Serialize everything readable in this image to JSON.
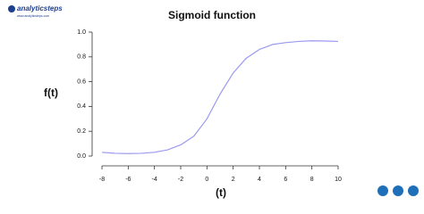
{
  "logo": {
    "name": "analyticsteps",
    "url": "www.analyticsteps.com"
  },
  "chart_data": {
    "type": "line",
    "title": "Sigmoid function",
    "x_label": "(t)",
    "y_label": "f(t)",
    "x": [
      -8,
      -7,
      -6,
      -5,
      -4,
      -3,
      -2,
      -1,
      0,
      1,
      2,
      3,
      4,
      5,
      6,
      7,
      8,
      9,
      10
    ],
    "series": [
      {
        "color": "#9a9af0",
        "values": [
          0.03,
          0.022,
          0.02,
          0.022,
          0.03,
          0.05,
          0.09,
          0.16,
          0.3,
          0.5,
          0.67,
          0.79,
          0.86,
          0.9,
          0.915,
          0.925,
          0.93,
          0.928,
          0.925
        ]
      }
    ],
    "xlim": [
      -8,
      10
    ],
    "xticks": [
      -8,
      -6,
      -4,
      -2,
      0,
      2,
      4,
      6,
      8,
      10
    ],
    "ylim": [
      0,
      1
    ],
    "yticks": [
      {
        "value": 0,
        "label": "0.0"
      },
      0.2,
      0.4,
      0.6,
      0.8,
      {
        "value": 1,
        "label": "1.0"
      }
    ],
    "grid": false
  }
}
